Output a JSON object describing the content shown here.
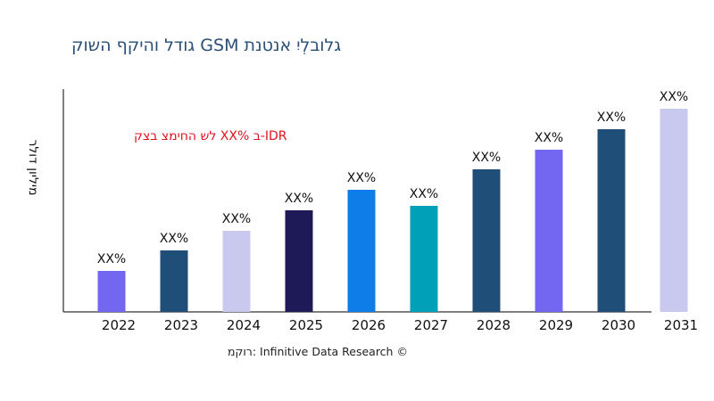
{
  "chart_data": {
    "type": "bar",
    "title": "קושה ףקיהו לדוג GSM תנטנא יִלְבולג",
    "ylabel": "רלוד ןוילימ",
    "xlabel": "",
    "categories": [
      "2022",
      "2023",
      "2024",
      "2025",
      "2026",
      "2027",
      "2028",
      "2029",
      "2030",
      "2031"
    ],
    "values": [
      46,
      69,
      91,
      114,
      137,
      119,
      160,
      182,
      205,
      228
    ],
    "data_labels": [
      "XX%",
      "XX%",
      "XX%",
      "XX%",
      "XX%",
      "XX%",
      "XX%",
      "XX%",
      "XX%",
      "XX%"
    ],
    "colors": [
      "#7366f0",
      "#1f4e79",
      "#c9c9f0",
      "#1e1a57",
      "#0f7de8",
      "#00a0b8",
      "#1f4e79",
      "#7366f0",
      "#1f4e79",
      "#c9c9f0"
    ],
    "ylim": [
      0,
      250
    ],
    "grid": false,
    "annotation": "לש החימצ בצק XX% ב-IDR",
    "source": "רוקמ: Infinitive Data Research ©"
  }
}
